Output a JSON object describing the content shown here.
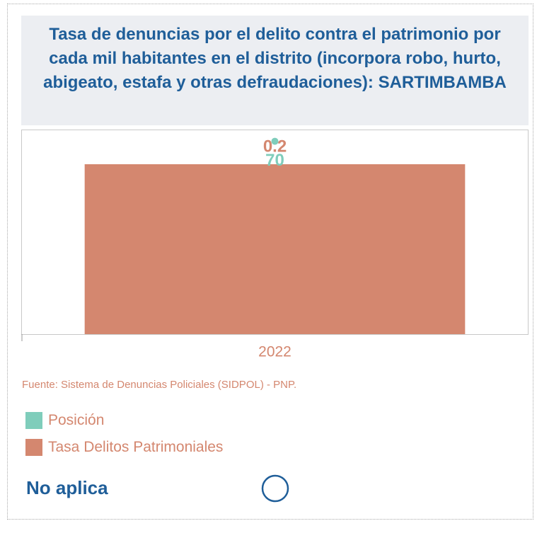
{
  "chart_data": {
    "type": "bar",
    "title": "Tasa de denuncias por el delito contra el patrimonio por cada mil habitantes en el distrito (incorpora robo, hurto, abigeato, estafa y otras defraudaciones): SARTIMBAMBA",
    "categories": [
      "2022"
    ],
    "series": [
      {
        "name": "Posición",
        "color": "#7fcdbb",
        "values": [
          70
        ],
        "axis": "y2"
      },
      {
        "name": "Tasa Delitos Patrimoniales",
        "color": "#d4876f",
        "values": [
          0.2
        ]
      }
    ],
    "ylim": [
      0,
      0.24
    ],
    "y2lim": [
      0,
      74
    ],
    "source": "Fuente: Sistema de Denuncias Policiales (SIDPOL) - PNP.",
    "note": "No aplica"
  }
}
